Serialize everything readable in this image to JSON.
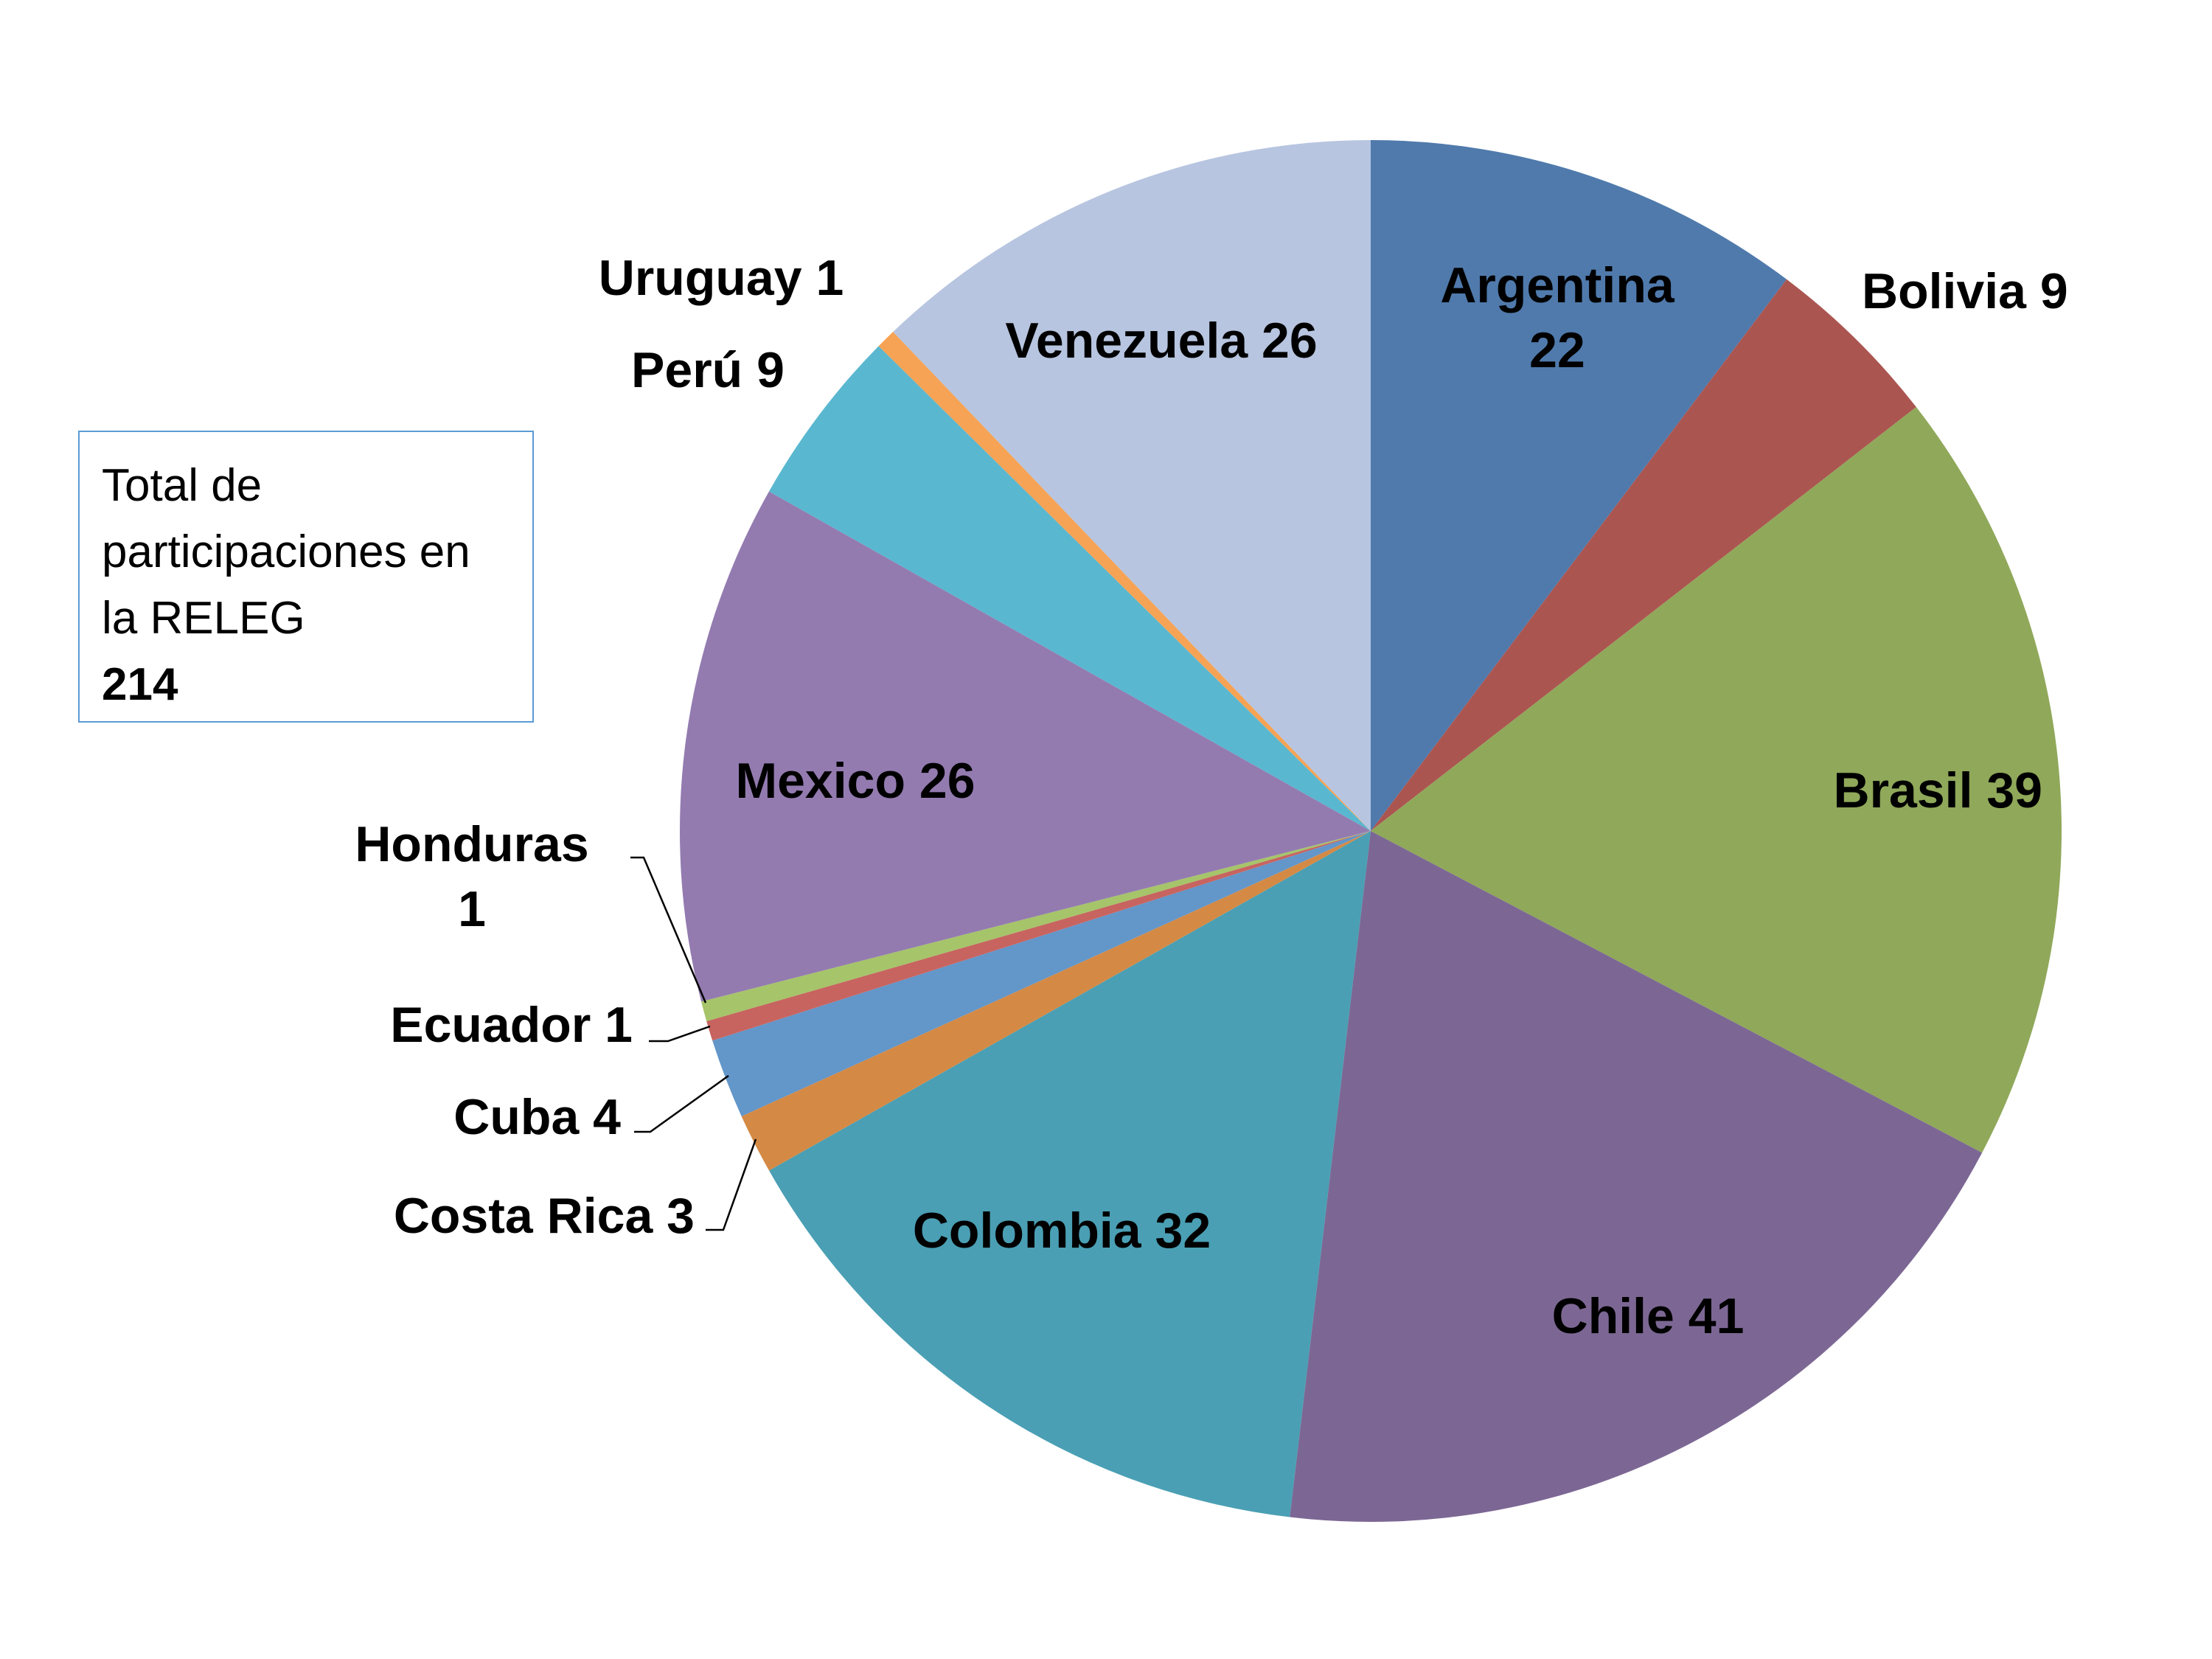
{
  "chart_data": {
    "type": "pie",
    "slices": [
      {
        "label": "Argentina",
        "value": 22,
        "text": "Argentina 22",
        "color": "#507aac",
        "label_lines": [
          "Argentina",
          "22"
        ]
      },
      {
        "label": "Bolivia",
        "value": 9,
        "text": "Bolivia 9",
        "color": "#ab5551",
        "label_lines": [
          "Bolivia 9"
        ]
      },
      {
        "label": "Brasil",
        "value": 39,
        "text": "Brasil 39",
        "color": "#90a85a",
        "label_lines": [
          "Brasil 39"
        ]
      },
      {
        "label": "Chile",
        "value": 41,
        "text": "Chile 41",
        "color": "#7c6794",
        "label_lines": [
          "Chile 41"
        ]
      },
      {
        "label": "Colombia",
        "value": 32,
        "text": "Colombia 32",
        "color": "#4a9fb4",
        "label_lines": [
          "Colombia 32"
        ]
      },
      {
        "label": "Costa Rica",
        "value": 3,
        "text": "Costa Rica 3",
        "color": "#d48a45",
        "label_lines": [
          "Costa Rica 3"
        ]
      },
      {
        "label": "Cuba",
        "value": 4,
        "text": "Cuba 4",
        "color": "#6396c9",
        "label_lines": [
          "Cuba 4"
        ]
      },
      {
        "label": "Ecuador",
        "value": 1,
        "text": "Ecuador 1",
        "color": "#c76460",
        "label_lines": [
          "Ecuador 1"
        ]
      },
      {
        "label": "Honduras",
        "value": 1,
        "text": "Honduras 1",
        "color": "#a6c46a",
        "label_lines": [
          "Honduras",
          "1"
        ]
      },
      {
        "label": "Mexico",
        "value": 26,
        "text": "Mexico 26",
        "color": "#937bb0",
        "label_lines": [
          "Mexico 26"
        ]
      },
      {
        "label": "Perú",
        "value": 9,
        "text": "Perú 9",
        "color": "#5ab7d0",
        "label_lines": [
          "Perú 9"
        ]
      },
      {
        "label": "Uruguay",
        "value": 1,
        "text": "Uruguay 1",
        "color": "#f6a355",
        "label_lines": [
          "Uruguay 1"
        ]
      },
      {
        "label": "Venezuela",
        "value": 26,
        "text": "Venezuela 26",
        "color": "#b7c5e0",
        "label_lines": [
          "Venezuela 26"
        ]
      }
    ],
    "start": "12 o'clock",
    "direction": "clockwise",
    "legend": "none"
  },
  "total_box": {
    "lines": [
      "Total de",
      "participaciones en",
      "la RELEG"
    ],
    "value": "214"
  }
}
